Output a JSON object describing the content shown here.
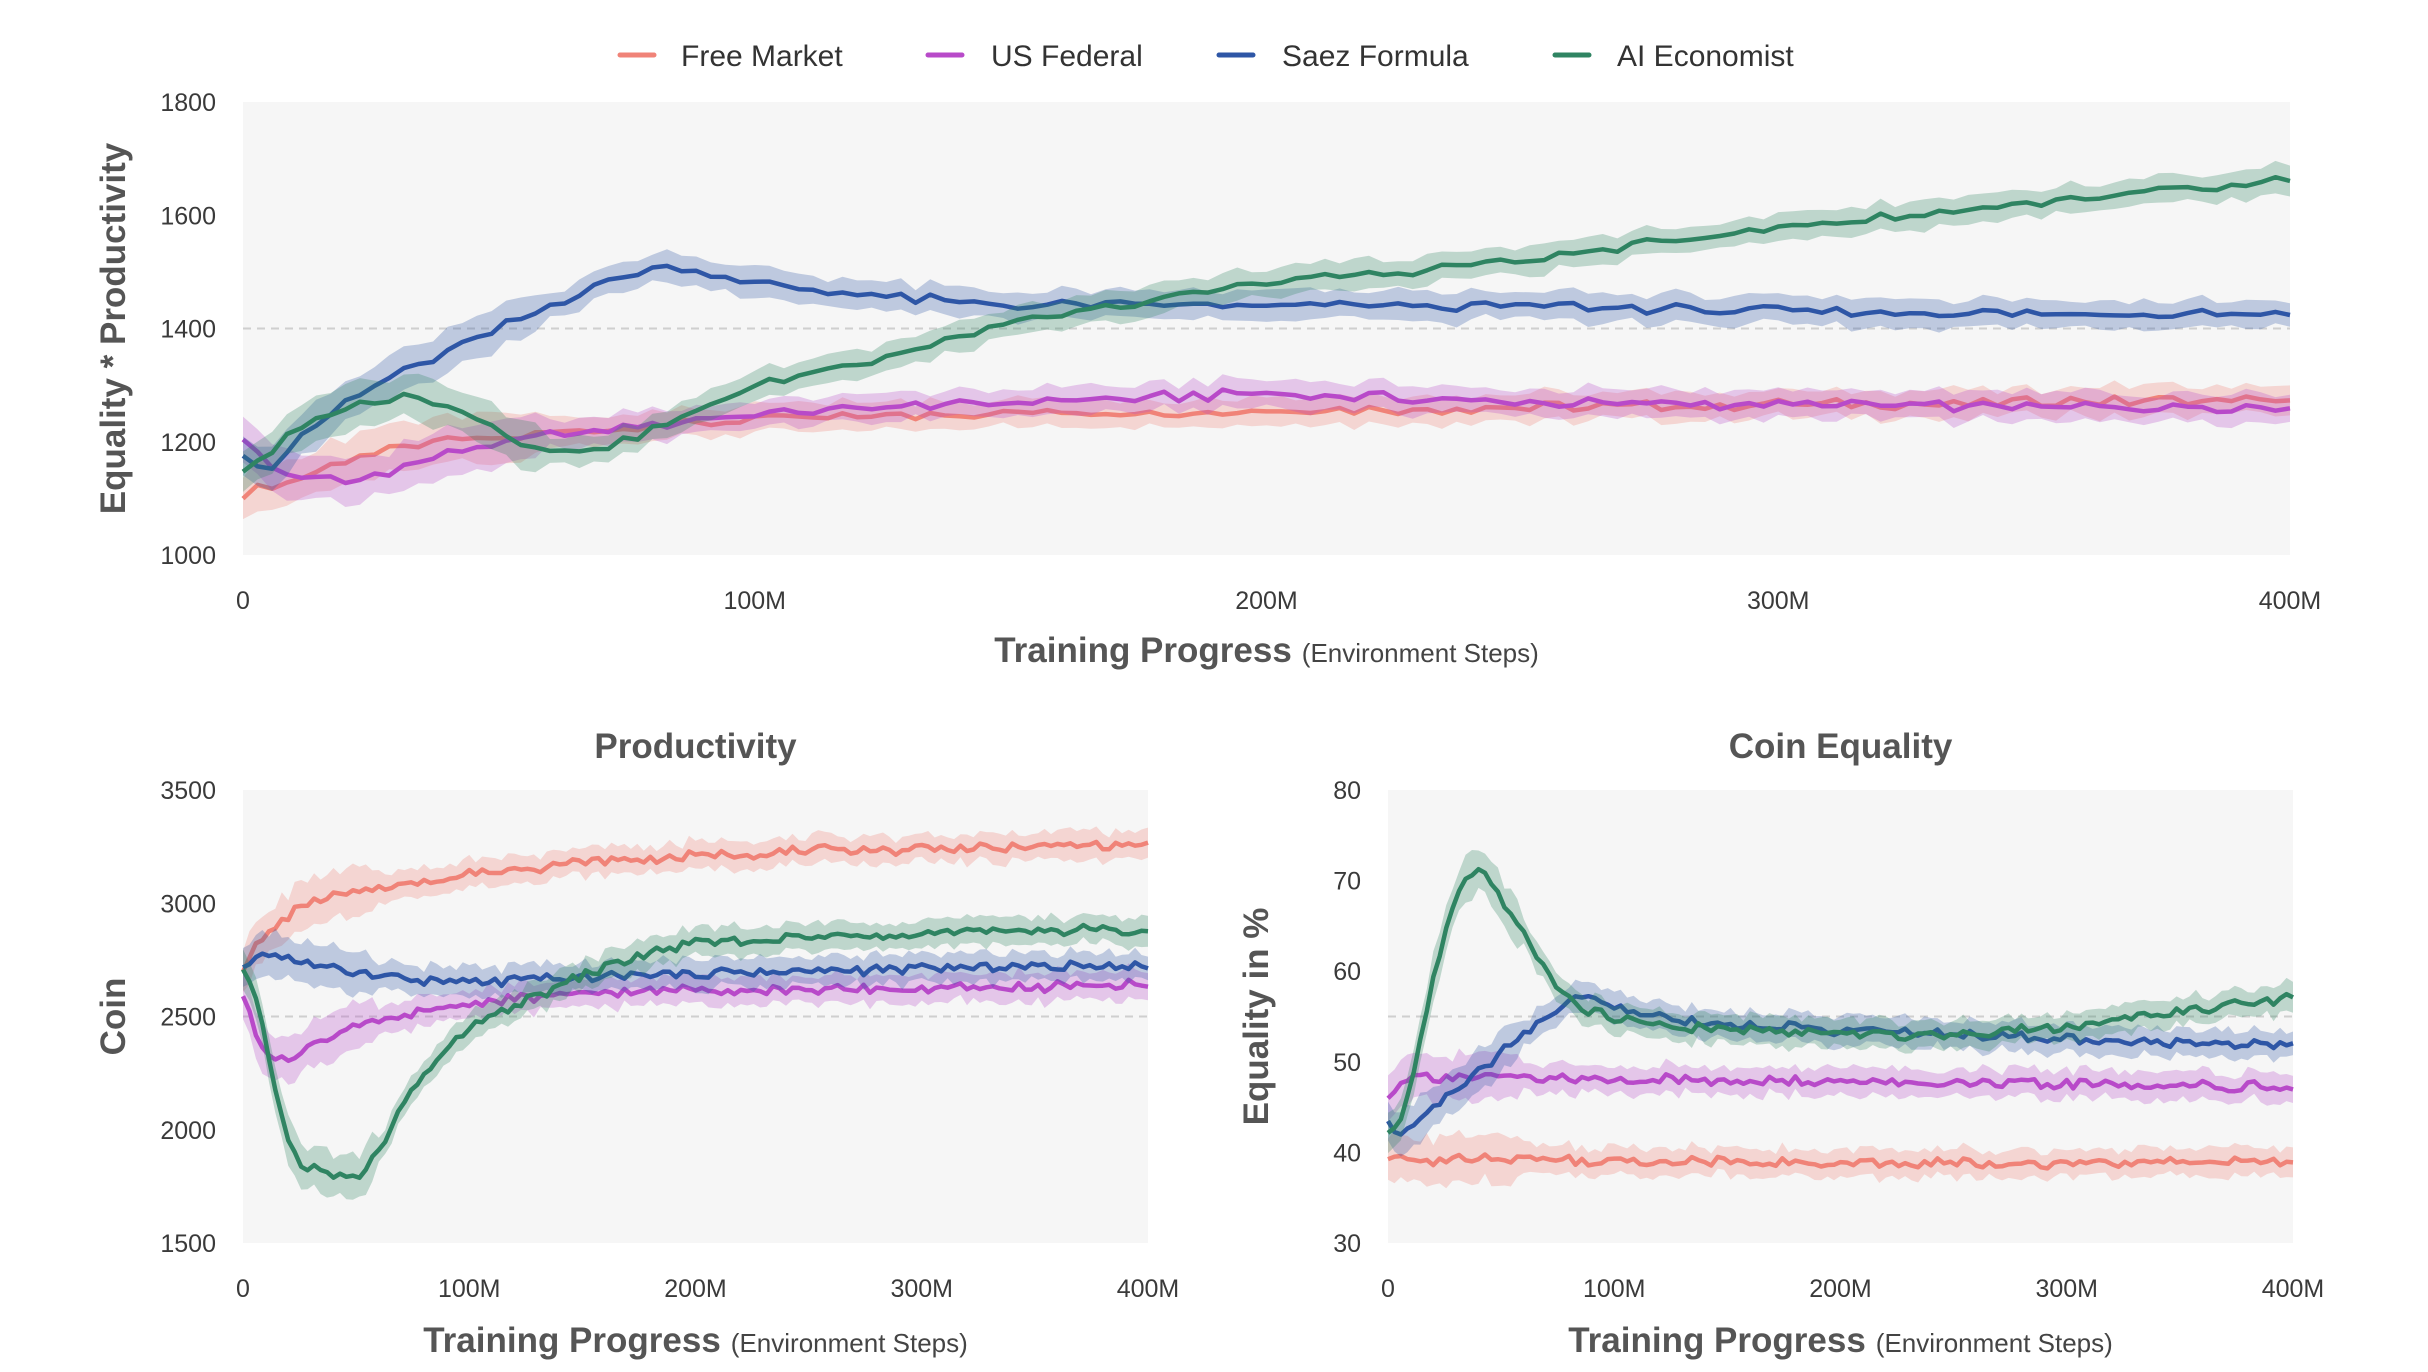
{
  "legend": [
    {
      "name": "Free Market",
      "color": "#f08378"
    },
    {
      "name": "US Federal",
      "color": "#b84ac9"
    },
    {
      "name": "Saez Formula",
      "color": "#2e56a6"
    },
    {
      "name": "AI Economist",
      "color": "#2f8462"
    }
  ],
  "chart_data": [
    {
      "type": "line",
      "title": "",
      "xlabel": "Training Progress",
      "xlabel_sub": "(Environment Steps)",
      "ylabel": "Equality * Productivity",
      "xlim": [
        0,
        400
      ],
      "ylim": [
        1000,
        1800
      ],
      "xticks": [
        0,
        100,
        200,
        300,
        400
      ],
      "xtick_labels": [
        "0",
        "100M",
        "200M",
        "300M",
        "400M"
      ],
      "yticks": [
        1000,
        1200,
        1400,
        1600,
        1800
      ],
      "ytick_labels": [
        "1000",
        "1200",
        "1400",
        "1600",
        "1800"
      ],
      "ref_line": 1400,
      "grid": false,
      "series": [
        {
          "name": "Free Market",
          "x": [
            0,
            10,
            20,
            40,
            60,
            80,
            100,
            150,
            200,
            250,
            300,
            350,
            400
          ],
          "y": [
            1110,
            1130,
            1170,
            1200,
            1215,
            1230,
            1240,
            1250,
            1255,
            1260,
            1265,
            1270,
            1275
          ]
        },
        {
          "name": "US Federal",
          "x": [
            0,
            5,
            10,
            20,
            30,
            40,
            60,
            80,
            100,
            150,
            200,
            250,
            300,
            350,
            400
          ],
          "y": [
            1210,
            1160,
            1140,
            1130,
            1150,
            1180,
            1210,
            1230,
            1250,
            1270,
            1285,
            1270,
            1265,
            1262,
            1260
          ]
        },
        {
          "name": "Saez Formula",
          "x": [
            0,
            5,
            10,
            20,
            30,
            40,
            50,
            60,
            70,
            80,
            90,
            100,
            120,
            150,
            180,
            200,
            250,
            300,
            350,
            400
          ],
          "y": [
            1180,
            1150,
            1200,
            1270,
            1320,
            1360,
            1400,
            1440,
            1480,
            1510,
            1500,
            1480,
            1460,
            1440,
            1440,
            1440,
            1440,
            1430,
            1425,
            1430
          ]
        },
        {
          "name": "AI Economist",
          "x": [
            0,
            5,
            10,
            20,
            30,
            40,
            50,
            60,
            70,
            80,
            90,
            100,
            120,
            150,
            180,
            200,
            250,
            300,
            350,
            400
          ],
          "y": [
            1150,
            1180,
            1220,
            1260,
            1280,
            1270,
            1220,
            1180,
            1190,
            1220,
            1260,
            1300,
            1340,
            1410,
            1450,
            1480,
            1520,
            1580,
            1620,
            1660
          ]
        }
      ]
    },
    {
      "type": "line",
      "title": "Productivity",
      "xlabel": "Training Progress",
      "xlabel_sub": "(Environment Steps)",
      "ylabel": "Coin",
      "xlim": [
        0,
        400
      ],
      "ylim": [
        1500,
        3500
      ],
      "xticks": [
        0,
        100,
        200,
        300,
        400
      ],
      "xtick_labels": [
        "0",
        "100M",
        "200M",
        "300M",
        "400M"
      ],
      "yticks": [
        1500,
        2000,
        2500,
        3000,
        3500
      ],
      "ytick_labels": [
        "1500",
        "2000",
        "2500",
        "3000",
        "3500"
      ],
      "ref_line": 2500,
      "grid": false,
      "series": [
        {
          "name": "Free Market",
          "x": [
            0,
            5,
            10,
            20,
            30,
            50,
            80,
            100,
            150,
            200,
            250,
            300,
            350,
            400
          ],
          "y": [
            2720,
            2800,
            2850,
            2950,
            3000,
            3050,
            3100,
            3130,
            3180,
            3210,
            3230,
            3240,
            3250,
            3260
          ]
        },
        {
          "name": "US Federal",
          "x": [
            0,
            5,
            10,
            20,
            30,
            50,
            80,
            100,
            150,
            200,
            250,
            300,
            350,
            400
          ],
          "y": [
            2600,
            2450,
            2350,
            2300,
            2380,
            2450,
            2520,
            2560,
            2600,
            2620,
            2620,
            2620,
            2630,
            2640
          ]
        },
        {
          "name": "Saez Formula",
          "x": [
            0,
            5,
            10,
            20,
            30,
            50,
            80,
            100,
            150,
            200,
            250,
            300,
            350,
            400
          ],
          "y": [
            2700,
            2770,
            2790,
            2760,
            2730,
            2700,
            2660,
            2650,
            2670,
            2690,
            2700,
            2710,
            2720,
            2730
          ]
        },
        {
          "name": "AI Economist",
          "x": [
            0,
            5,
            10,
            15,
            20,
            25,
            30,
            40,
            50,
            60,
            70,
            80,
            100,
            120,
            150,
            180,
            200,
            250,
            300,
            350,
            400
          ],
          "y": [
            2700,
            2600,
            2400,
            2150,
            1950,
            1850,
            1830,
            1800,
            1780,
            1900,
            2100,
            2250,
            2450,
            2550,
            2680,
            2780,
            2820,
            2850,
            2870,
            2880,
            2880
          ]
        }
      ]
    },
    {
      "type": "line",
      "title": "Coin Equality",
      "xlabel": "Training Progress",
      "xlabel_sub": "(Environment Steps)",
      "ylabel": "Equality in %",
      "xlim": [
        0,
        400
      ],
      "ylim": [
        30,
        80
      ],
      "xticks": [
        0,
        100,
        200,
        300,
        400
      ],
      "xtick_labels": [
        "0",
        "100M",
        "200M",
        "300M",
        "400M"
      ],
      "yticks": [
        30,
        40,
        50,
        60,
        70,
        80
      ],
      "ytick_labels": [
        "30",
        "40",
        "50",
        "60",
        "70",
        "80"
      ],
      "ref_line": 55,
      "grid": false,
      "series": [
        {
          "name": "Free Market",
          "x": [
            0,
            10,
            50,
            100,
            150,
            200,
            250,
            300,
            350,
            400
          ],
          "y": [
            39.5,
            39,
            39.5,
            39,
            39,
            38.8,
            38.8,
            38.8,
            39,
            39
          ]
        },
        {
          "name": "US Federal",
          "x": [
            0,
            5,
            10,
            30,
            50,
            100,
            150,
            200,
            250,
            300,
            350,
            400
          ],
          "y": [
            46,
            48,
            48.5,
            48.3,
            48.2,
            48,
            48,
            47.8,
            47.6,
            47.5,
            47.3,
            47.2
          ]
        },
        {
          "name": "Saez Formula",
          "x": [
            0,
            5,
            10,
            20,
            30,
            40,
            50,
            60,
            70,
            80,
            90,
            100,
            120,
            150,
            200,
            250,
            300,
            350,
            400
          ],
          "y": [
            43,
            42,
            43,
            45,
            47,
            49,
            51,
            53,
            55,
            57,
            57,
            56,
            55,
            54,
            53.5,
            53,
            52.5,
            52,
            52
          ]
        },
        {
          "name": "AI Economist",
          "x": [
            0,
            5,
            10,
            15,
            20,
            25,
            30,
            35,
            40,
            45,
            50,
            60,
            70,
            80,
            90,
            100,
            120,
            150,
            200,
            250,
            300,
            350,
            400
          ],
          "y": [
            42,
            43,
            47,
            53,
            59,
            64,
            68,
            70.5,
            71,
            70,
            68,
            64,
            60,
            57,
            55.5,
            55,
            54,
            53.5,
            53,
            53,
            54,
            55.5,
            57
          ]
        }
      ]
    }
  ]
}
